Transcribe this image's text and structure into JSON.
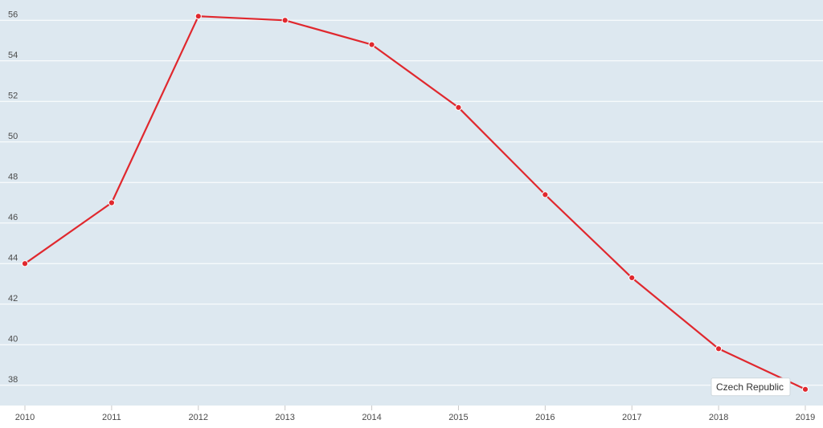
{
  "chart_data": {
    "type": "line",
    "title": "",
    "xlabel": "",
    "ylabel": "",
    "x": [
      2010,
      2011,
      2012,
      2013,
      2014,
      2015,
      2016,
      2017,
      2018,
      2019
    ],
    "series": [
      {
        "name": "Czech Republic",
        "values": [
          44.0,
          47.0,
          56.2,
          56.0,
          54.8,
          51.7,
          47.4,
          43.3,
          39.8,
          37.8
        ],
        "color": "#e0282e"
      }
    ],
    "ylim": [
      37,
      57
    ],
    "y_ticks": [
      38,
      40,
      42,
      44,
      46,
      48,
      50,
      52,
      54,
      56
    ],
    "grid": true,
    "legend": "none",
    "plot_background": "#dde8f0",
    "grid_color": "#ffffff"
  }
}
